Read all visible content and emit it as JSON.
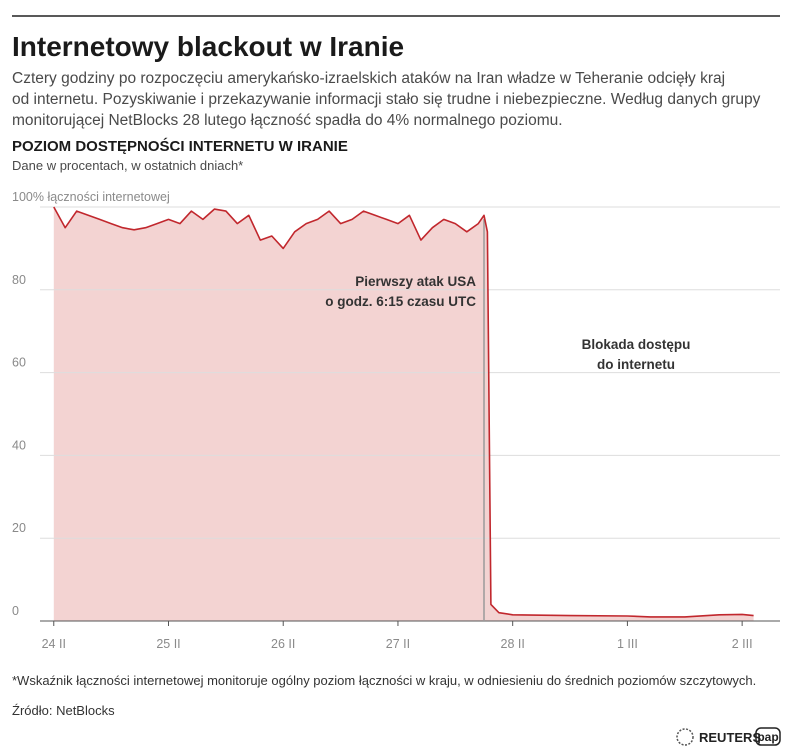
{
  "chart_data": {
    "type": "area",
    "title": "Internetowy blackout w Iranie",
    "subtitle": [
      "Cztery godziny po rozpoczęciu amerykańsko-izraelskich ataków na Iran władze w Teheranie odcięły kraj",
      "od internetu. Pozyskiwanie i przekazywanie informacji stało się trudne i niebezpieczne. Według danych grupy",
      "monitorującej NetBlocks 28 lutego łączność spadła do 4% normalnego poziomu."
    ],
    "heading": "POZIOM DOSTĘPNOŚCI INTERNETU W IRANIE",
    "unit_note": "Dane w procentach, w ostatnich dniach*",
    "footnote": "*Wskaźnik łączności internetowej monitoruje ogólny poziom łączności w kraju, w odniesieniu do średnich poziomów szczytowych.",
    "source": "Źródło: NetBlocks",
    "logos": [
      "REUTERS",
      "pap"
    ],
    "x": [
      0,
      0.1,
      0.2,
      0.3,
      0.4,
      0.5,
      0.6,
      0.7,
      0.8,
      0.9,
      1.0,
      1.1,
      1.2,
      1.3,
      1.4,
      1.5,
      1.6,
      1.7,
      1.8,
      1.9,
      2.0,
      2.1,
      2.2,
      2.3,
      2.4,
      2.5,
      2.6,
      2.7,
      2.8,
      2.9,
      3.0,
      3.1,
      3.2,
      3.3,
      3.4,
      3.5,
      3.6,
      3.7,
      3.75,
      3.78,
      3.81,
      3.88,
      4.0,
      4.5,
      5.0,
      5.2,
      5.5,
      5.8,
      6.0,
      6.1
    ],
    "series": [
      {
        "color": "#c1272d",
        "fill": "#f3d3d2",
        "values": [
          100,
          95,
          99,
          98,
          97,
          96,
          95,
          94.5,
          95,
          96,
          97,
          96,
          99,
          97,
          99.5,
          99,
          96,
          98,
          92,
          93,
          90,
          94,
          96,
          97,
          99,
          96,
          97,
          99,
          98,
          97,
          96,
          98,
          92,
          95,
          97,
          96,
          94,
          96,
          98,
          94,
          4,
          2,
          1.5,
          1.3,
          1.2,
          1,
          1,
          1.5,
          1.6,
          1.3
        ]
      }
    ],
    "xlim": [
      -0.12,
      6.33
    ],
    "xticks": [
      {
        "value": 0,
        "label": "24 II"
      },
      {
        "value": 1,
        "label": "25 II"
      },
      {
        "value": 2,
        "label": "26 II"
      },
      {
        "value": 3,
        "label": "27 II"
      },
      {
        "value": 4,
        "label": "28 II"
      },
      {
        "value": 5,
        "label": "1 III"
      },
      {
        "value": 6,
        "label": "2 III"
      }
    ],
    "ylim": [
      0,
      100
    ],
    "yticks": [
      0,
      20,
      40,
      60,
      80,
      {
        "value": 100,
        "label": "100% łączności internetowej"
      }
    ],
    "grid": true,
    "annotations": [
      {
        "x": 3.75,
        "text": [
          "Pierwszy atak USA",
          "o godz. 6:15 czasu UTC"
        ]
      },
      {
        "text": [
          "Blokada dostępu",
          "do internetu"
        ]
      }
    ]
  }
}
